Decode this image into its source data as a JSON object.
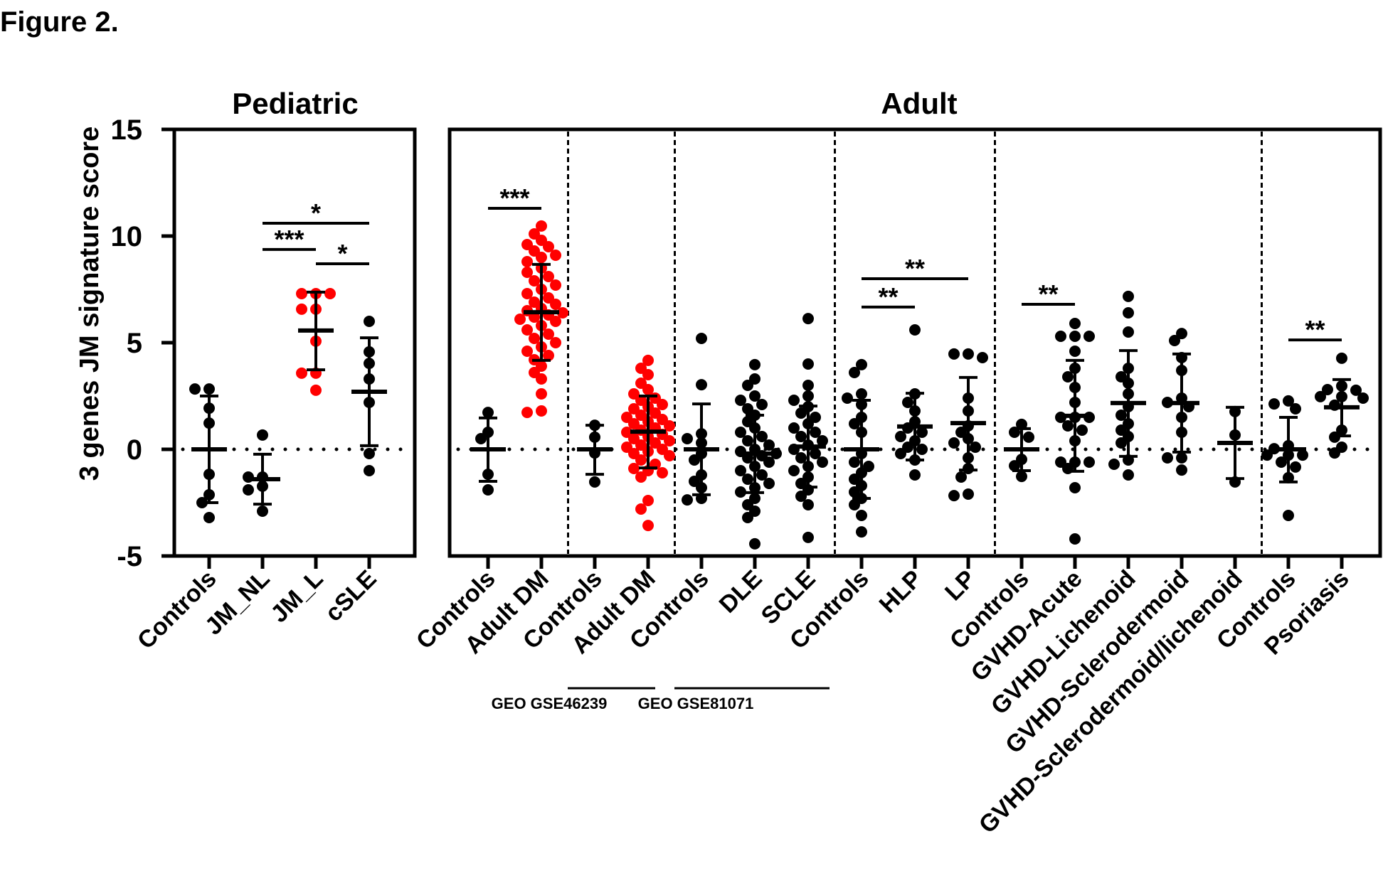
{
  "figure_label": "Figure 2.",
  "chart_data": {
    "type": "scatter",
    "subtype": "dot-plot with mean and SD error bars",
    "ylabel": "3 genes JM signature score",
    "ylim": [
      -5,
      15
    ],
    "yticks": [
      -5,
      0,
      5,
      10,
      15
    ],
    "reference_line": {
      "y": 0,
      "style": "dotted"
    },
    "colors": {
      "default": "#000000",
      "highlight": "#ff0000"
    },
    "panels": [
      {
        "title": "Pediatric",
        "groups": [
          {
            "label": "Controls",
            "color": "default",
            "mean": 0,
            "sd_upper": 2.5,
            "sd_lower": -2.5,
            "values": [
              2.83,
              2.83,
              1.93,
              1.23,
              -1.17,
              -2.13,
              -2.5,
              -3.2
            ]
          },
          {
            "label": "JM_NL",
            "color": "default",
            "mean": -1.4,
            "sd_upper": -0.23,
            "sd_lower": -2.57,
            "values": [
              0.67,
              -1.3,
              -1.3,
              -1.73,
              -1.9,
              -2.9
            ]
          },
          {
            "label": "JM_L",
            "color": "highlight",
            "mean": 5.57,
            "sd_upper": 7.37,
            "sd_lower": 3.73,
            "values": [
              7.3,
              7.3,
              7.3,
              6.57,
              6.57,
              5.07,
              3.57,
              3.57,
              2.77
            ]
          },
          {
            "label": "cSLE",
            "color": "default",
            "mean": 2.7,
            "sd_upper": 5.23,
            "sd_lower": 0.17,
            "values": [
              6.0,
              4.57,
              4.03,
              3.3,
              2.2,
              -0.2,
              -1.0
            ]
          }
        ],
        "significance": [
          {
            "from": 1,
            "to": 3,
            "y": 10.6,
            "label": "*"
          },
          {
            "from": 1,
            "to": 2,
            "y": 9.37,
            "label": "***"
          },
          {
            "from": 2,
            "to": 3,
            "y": 8.7,
            "label": "*"
          }
        ],
        "separators_after": []
      },
      {
        "title": "Adult",
        "groups": [
          {
            "label": "Controls",
            "color": "default",
            "mean": 0,
            "sd_upper": 1.47,
            "sd_lower": -1.5,
            "values": [
              1.73,
              0.8,
              0.5,
              -1.17,
              -1.9
            ]
          },
          {
            "label": "Adult DM",
            "color": "highlight",
            "mean": 6.43,
            "sd_upper": 8.67,
            "sd_lower": 4.17,
            "values": [
              10.47,
              10.1,
              9.8,
              9.6,
              9.5,
              9.3,
              9.1,
              9.0,
              8.8,
              8.5,
              8.3,
              8.1,
              7.9,
              7.7,
              7.5,
              7.3,
              7.1,
              6.9,
              6.8,
              6.6,
              6.5,
              6.4,
              6.3,
              6.2,
              6.1,
              6.0,
              5.8,
              5.6,
              5.4,
              5.2,
              5.0,
              4.8,
              4.6,
              4.4,
              4.2,
              3.9,
              3.6,
              3.3,
              2.6,
              1.8,
              1.73
            ]
          },
          {
            "label": "Controls",
            "color": "default",
            "mean": 0,
            "sd_upper": 1.13,
            "sd_lower": -1.17,
            "values": [
              1.13,
              0.57,
              -0.17,
              -1.53
            ]
          },
          {
            "label": "Adult DM",
            "color": "highlight",
            "mean": 0.83,
            "sd_upper": 2.5,
            "sd_lower": -0.87,
            "values": [
              4.17,
              3.8,
              3.5,
              3.1,
              2.8,
              2.6,
              2.4,
              2.3,
              2.1,
              2.0,
              1.9,
              1.7,
              1.6,
              1.5,
              1.4,
              1.3,
              1.2,
              1.1,
              1.0,
              0.9,
              0.8,
              0.7,
              0.6,
              0.5,
              0.4,
              0.3,
              0.2,
              0.1,
              0.0,
              -0.1,
              -0.2,
              -0.3,
              -0.5,
              -0.7,
              -0.9,
              -1.0,
              -1.1,
              -1.3,
              -2.4,
              -2.8,
              -3.57
            ]
          },
          {
            "label": "Controls",
            "color": "default",
            "mean": 0,
            "sd_upper": 2.13,
            "sd_lower": -2.13,
            "values": [
              5.2,
              3.03,
              0.73,
              0.5,
              0.3,
              -0.2,
              -0.5,
              -1.2,
              -1.5,
              -1.8,
              -2.3,
              -2.37
            ]
          },
          {
            "label": "DLE",
            "color": "default",
            "mean": -0.2,
            "sd_upper": 1.6,
            "sd_lower": -2.03,
            "values": [
              3.97,
              3.3,
              3.0,
              2.5,
              2.3,
              2.1,
              1.9,
              1.6,
              1.3,
              1.0,
              0.8,
              0.6,
              0.4,
              0.2,
              0.0,
              -0.1,
              -0.2,
              -0.3,
              -0.4,
              -0.6,
              -0.8,
              -1.0,
              -1.2,
              -1.4,
              -1.6,
              -1.8,
              -2.0,
              -2.3,
              -2.6,
              -2.9,
              -3.2,
              -4.43
            ]
          },
          {
            "label": "SCLE",
            "color": "default",
            "mean": 0.13,
            "sd_upper": 2.03,
            "sd_lower": -1.77,
            "values": [
              6.13,
              4.0,
              3.0,
              2.5,
              2.3,
              2.0,
              1.7,
              1.5,
              1.2,
              1.0,
              0.8,
              0.6,
              0.4,
              0.2,
              0.0,
              -0.2,
              -0.4,
              -0.6,
              -0.8,
              -1.0,
              -1.3,
              -1.6,
              -1.9,
              -2.2,
              -2.6,
              -4.13
            ]
          },
          {
            "label": "Controls",
            "color": "default",
            "mean": 0,
            "sd_upper": 2.3,
            "sd_lower": -2.3,
            "values": [
              3.97,
              3.6,
              2.6,
              2.4,
              2.1,
              1.5,
              1.2,
              0.8,
              -0.2,
              -0.6,
              -0.8,
              -1.1,
              -1.4,
              -1.7,
              -2.0,
              -2.3,
              -2.6,
              -3.1,
              -3.87
            ]
          },
          {
            "label": "HLP",
            "color": "default",
            "mean": 1.07,
            "sd_upper": 2.63,
            "sd_lower": -0.5,
            "values": [
              5.6,
              2.6,
              2.2,
              1.8,
              1.3,
              1.0,
              0.8,
              0.6,
              0.4,
              0.1,
              0.0,
              -0.2,
              -0.5,
              -1.2
            ]
          },
          {
            "label": "LP",
            "color": "default",
            "mean": 1.23,
            "sd_upper": 3.37,
            "sd_lower": -0.97,
            "values": [
              4.47,
              4.47,
              4.3,
              2.4,
              1.8,
              1.1,
              0.8,
              0.5,
              0.3,
              0.1,
              -0.4,
              -0.9,
              -1.3,
              -2.1,
              -2.17
            ]
          },
          {
            "label": "Controls",
            "color": "default",
            "mean": 0,
            "sd_upper": 0.97,
            "sd_lower": -1.0,
            "values": [
              1.17,
              0.8,
              0.57,
              -0.47,
              -0.77,
              -1.27
            ]
          },
          {
            "label": "GVHD-Acute",
            "color": "default",
            "mean": 1.57,
            "sd_upper": 4.17,
            "sd_lower": -1.03,
            "values": [
              5.9,
              5.3,
              5.3,
              5.3,
              4.6,
              3.8,
              3.4,
              2.9,
              2.2,
              1.5,
              1.5,
              1.5,
              1.1,
              0.9,
              0.4,
              -0.6,
              -0.6,
              -0.6,
              -0.9,
              -1.8,
              -4.2
            ]
          },
          {
            "label": "GVHD-Lichenoid",
            "color": "default",
            "mean": 2.17,
            "sd_upper": 4.63,
            "sd_lower": -0.33,
            "values": [
              7.17,
              6.4,
              5.5,
              3.8,
              3.4,
              3.1,
              2.6,
              2.0,
              1.6,
              1.2,
              0.9,
              0.6,
              0.3,
              -0.5,
              -0.7,
              -1.2
            ]
          },
          {
            "label": "GVHD-Sclerodermoid",
            "color": "default",
            "mean": 2.17,
            "sd_upper": 4.47,
            "sd_lower": -0.13,
            "values": [
              5.43,
              5.1,
              4.3,
              3.7,
              2.4,
              2.2,
              2.0,
              1.5,
              0.8,
              -0.4,
              -0.4,
              -0.97
            ]
          },
          {
            "label": "GVHD-Sclerodermoid/lichenoid",
            "color": "default",
            "mean": 0.3,
            "sd_upper": 1.97,
            "sd_lower": -1.37,
            "values": [
              1.77,
              0.67,
              -1.53
            ]
          },
          {
            "label": "Controls",
            "color": "default",
            "mean": 0,
            "sd_upper": 1.5,
            "sd_lower": -1.53,
            "values": [
              2.27,
              2.13,
              1.9,
              0.17,
              0.03,
              -0.27,
              -0.27,
              -0.27,
              -0.6,
              -0.83,
              -1.33,
              -3.1
            ]
          },
          {
            "label": "Psoriasis",
            "color": "default",
            "mean": 1.97,
            "sd_upper": 3.27,
            "sd_lower": 0.63,
            "values": [
              4.27,
              2.97,
              2.8,
              2.77,
              2.47,
              2.47,
              2.4,
              2.07,
              0.9,
              0.57,
              0.1,
              -0.17
            ]
          }
        ],
        "significance": [
          {
            "from": 0,
            "to": 1,
            "y": 11.3,
            "label": "***"
          },
          {
            "from": 7,
            "to": 9,
            "y": 8.0,
            "label": "**"
          },
          {
            "from": 7,
            "to": 8,
            "y": 6.67,
            "label": "**"
          },
          {
            "from": 10,
            "to": 11,
            "y": 6.8,
            "label": "**"
          },
          {
            "from": 15,
            "to": 16,
            "y": 5.13,
            "label": "**"
          }
        ],
        "separators_after": [
          1,
          3,
          6,
          9,
          14
        ]
      }
    ],
    "dataset_annotations": [
      {
        "label": "GEO GSE46239",
        "groups": [
          2,
          3
        ],
        "panel": 1
      },
      {
        "label": "GEO GSE81071",
        "groups": [
          4,
          6
        ],
        "panel": 1
      }
    ]
  }
}
